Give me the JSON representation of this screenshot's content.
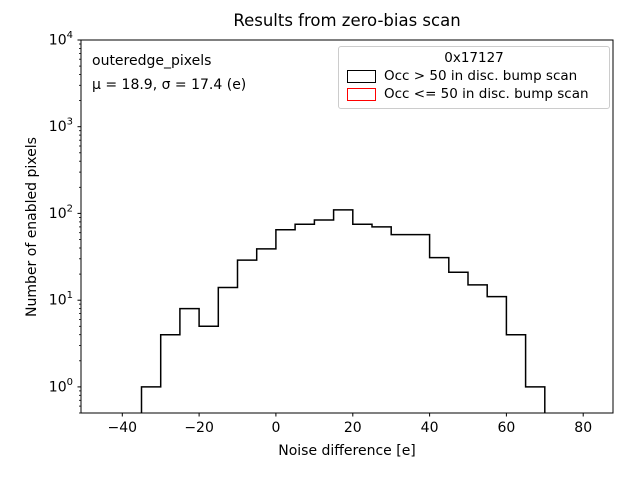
{
  "figure": {
    "title": "Results from zero-bias scan",
    "xlabel": "Noise difference [e]",
    "ylabel": "Number of enabled pixels",
    "annotation": {
      "dataset": "outeredge_pixels",
      "stats": "μ = 18.9, σ = 17.4 (e)"
    },
    "legend": {
      "title": "0x17127",
      "entries": [
        {
          "label": "Occ > 50 in disc. bump scan",
          "color": "#000000"
        },
        {
          "label": "Occ <= 50 in disc. bump scan",
          "color": "#ff0000"
        }
      ]
    }
  },
  "chart_data": {
    "type": "bar",
    "subtype": "step-histogram",
    "title": "Results from zero-bias scan",
    "xlabel": "Noise difference [e]",
    "ylabel": "Number of enabled pixels",
    "yscale": "log",
    "xlim": [
      -50.75,
      87.75
    ],
    "ylim": [
      0.5,
      10000
    ],
    "xticks": [
      -40,
      -20,
      0,
      20,
      40,
      60,
      80
    ],
    "xtick_labels": [
      "−40",
      "−20",
      "0",
      "20",
      "40",
      "60",
      "80"
    ],
    "ytick_exponents": [
      0,
      1,
      2,
      3,
      4
    ],
    "grid": false,
    "legend_position": "upper right",
    "bin_width": 5,
    "bin_edges": [
      -35,
      -30,
      -25,
      -20,
      -15,
      -10,
      -5,
      0,
      5,
      10,
      15,
      20,
      25,
      30,
      35,
      40,
      45,
      50,
      55,
      60,
      65,
      70
    ],
    "series": [
      {
        "name": "Occ > 50 in disc. bump scan",
        "color": "#000000",
        "counts": [
          1,
          4,
          8,
          5,
          14,
          29,
          39,
          65,
          75,
          84,
          110,
          75,
          70,
          57,
          57,
          31,
          21,
          15,
          11,
          4,
          1
        ]
      },
      {
        "name": "Occ <= 50 in disc. bump scan",
        "color": "#ff0000",
        "counts": []
      }
    ]
  }
}
